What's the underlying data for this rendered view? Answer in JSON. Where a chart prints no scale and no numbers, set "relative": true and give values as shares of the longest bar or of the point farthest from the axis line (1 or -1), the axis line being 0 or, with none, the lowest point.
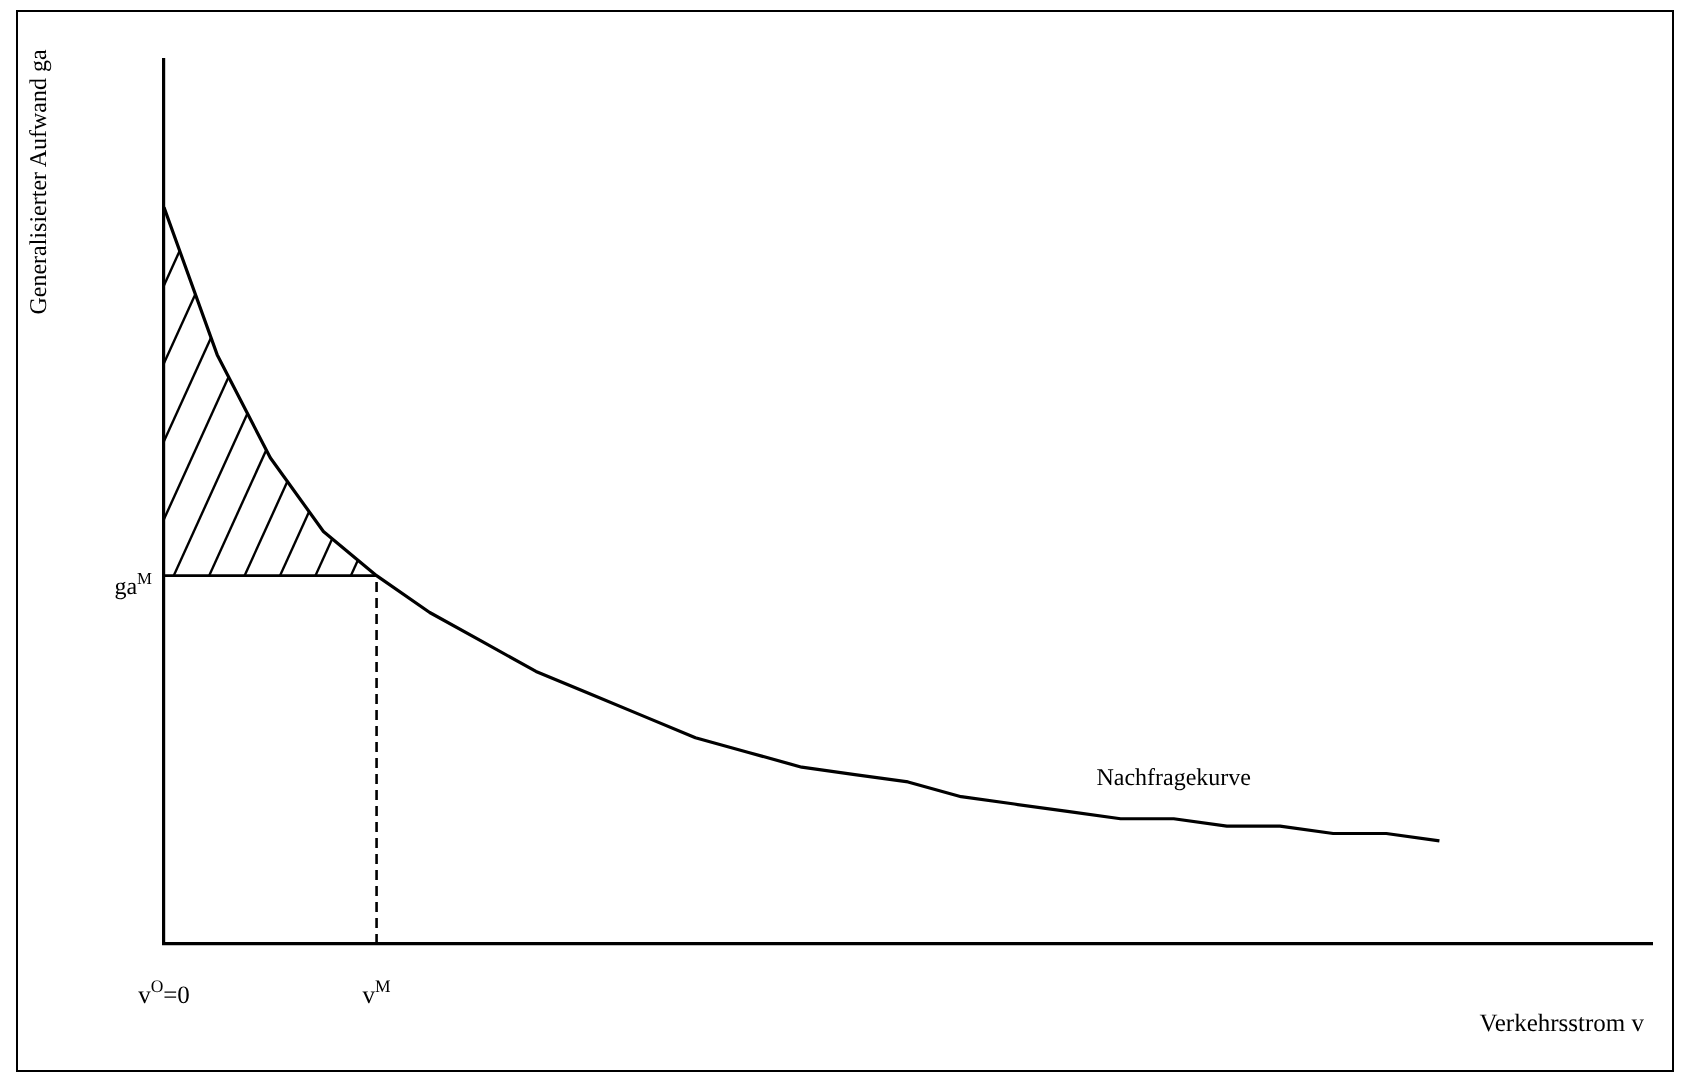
{
  "chart_data": {
    "type": "line",
    "relative": true,
    "xlabel": "Verkehrsstrom v",
    "ylabel": "Generalisierter Aufwand ga",
    "categories": [
      "v$^{O}$=0",
      null,
      null,
      null,
      "v$^{M}$",
      null,
      null,
      null,
      null,
      null,
      null,
      null,
      null,
      null,
      null,
      null,
      null,
      null,
      null,
      null,
      null,
      null,
      null,
      null,
      null,
      null,
      null,
      null,
      null
    ],
    "series": [
      {
        "name": "Nachfragekurve",
        "color": "#000000",
        "values": [
          1,
          0.8,
          0.66,
          0.56,
          0.5,
          0.45,
          0.41,
          0.37,
          0.34,
          0.31,
          0.28,
          0.26,
          0.24,
          0.23,
          0.22,
          0.2,
          0.19,
          0.18,
          0.17,
          0.17,
          0.16,
          0.16,
          0.15,
          0.15,
          0.14,
          null,
          null,
          null,
          null
        ]
      }
    ],
    "ref_lines": [
      {
        "axis": "y",
        "value": 0.5,
        "label": "ga$^{M}$",
        "line_style": "solid"
      },
      {
        "axis": "x",
        "value": "v$^{M}$",
        "line_style": "dashed"
      }
    ],
    "grid": false,
    "legend": false,
    "marker": "none",
    "line_style": "solid"
  }
}
